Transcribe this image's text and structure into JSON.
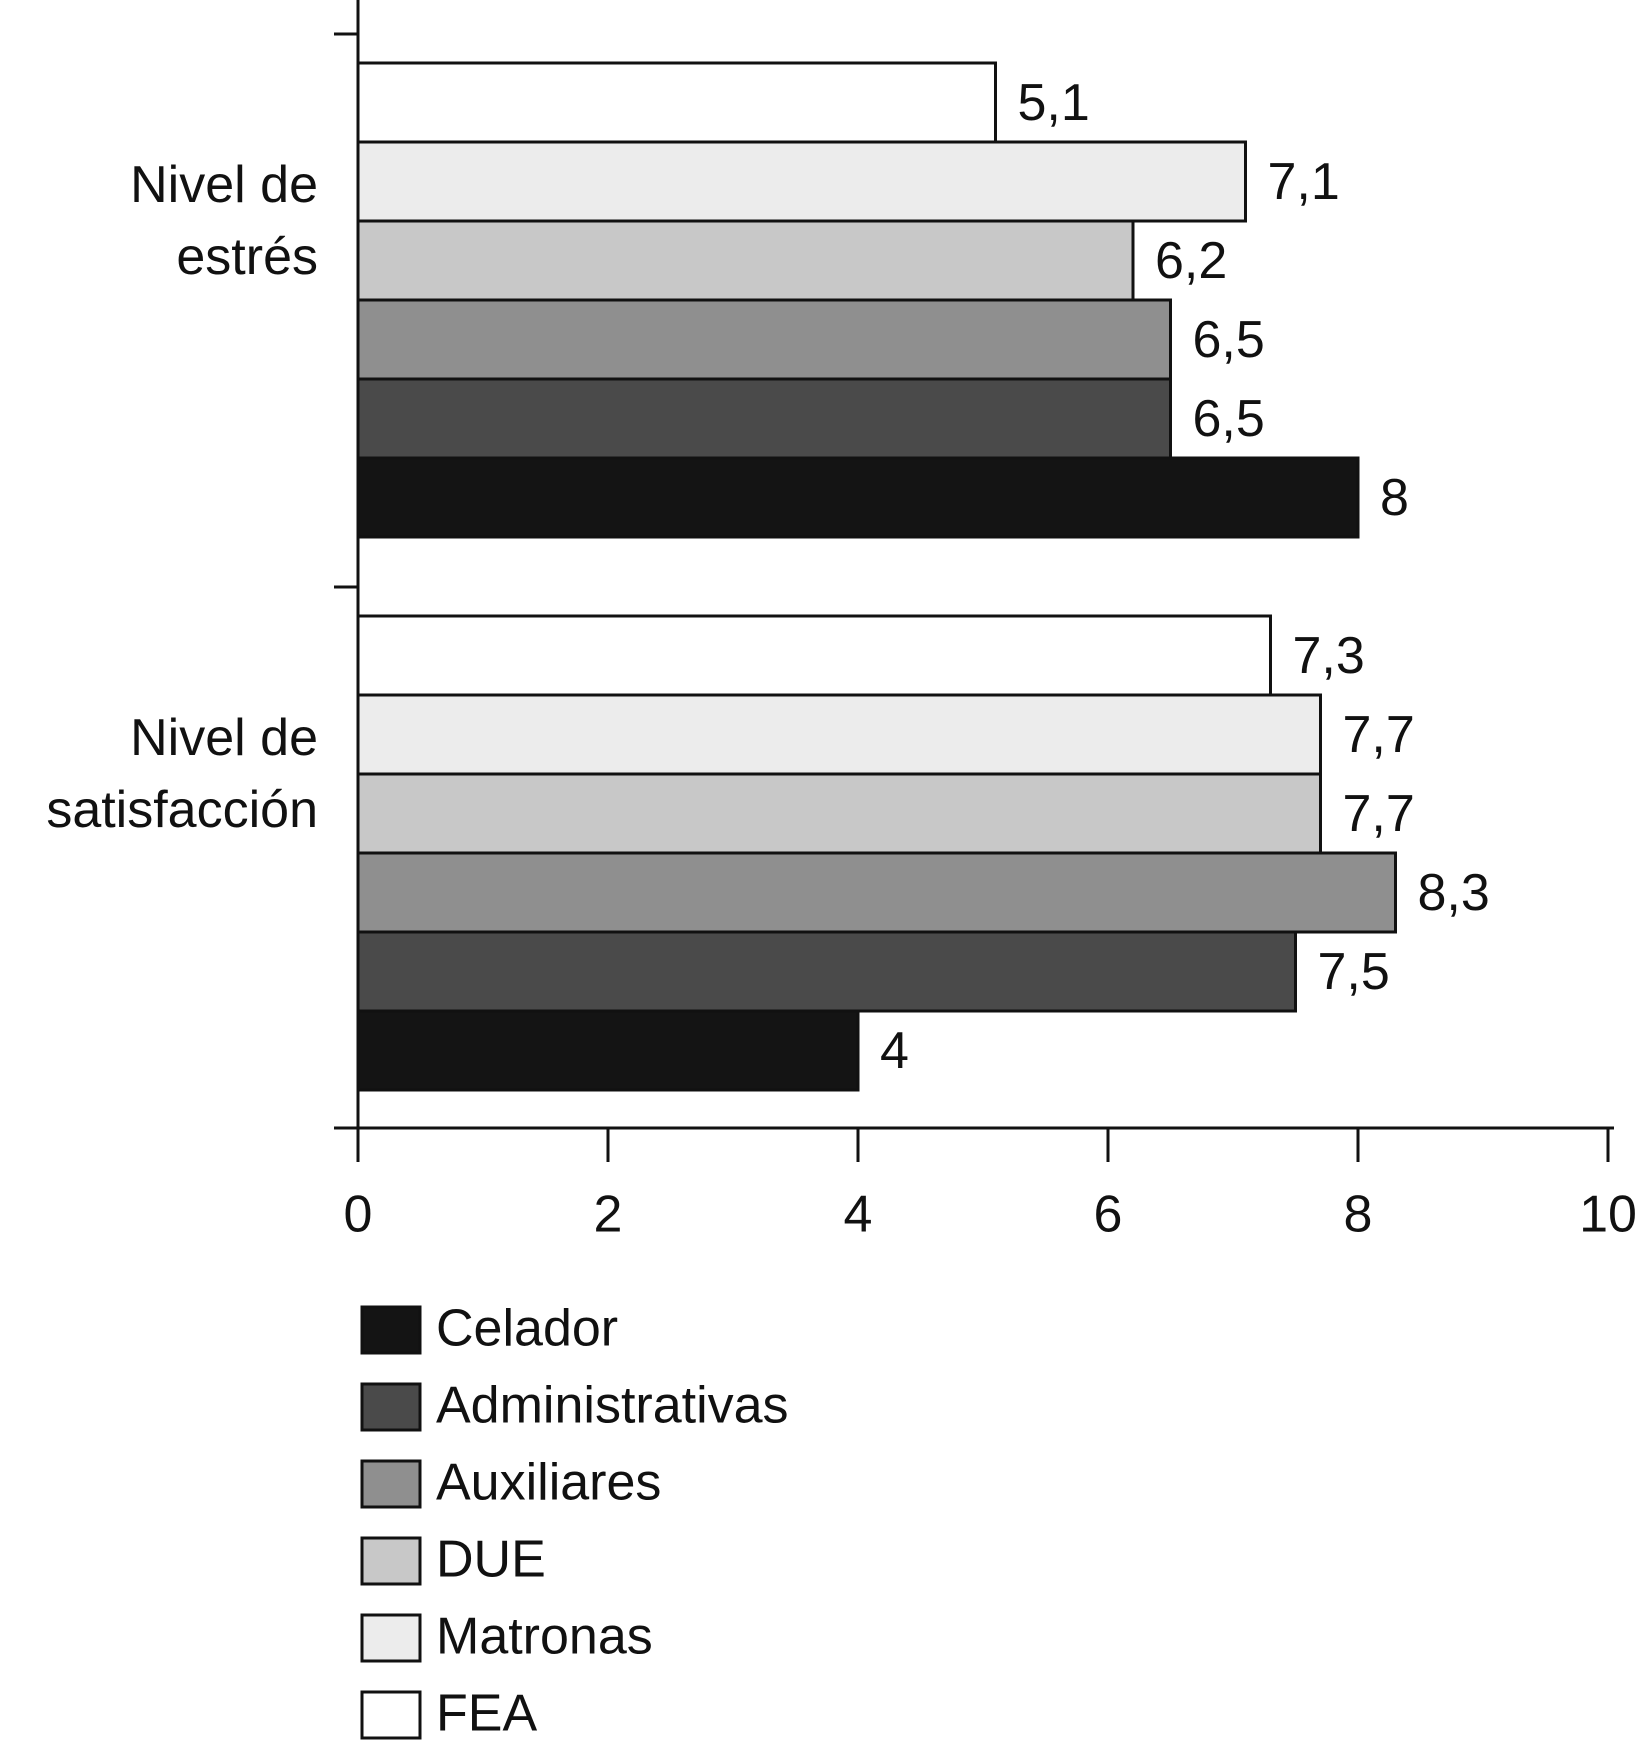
{
  "chart_data": {
    "type": "hbar",
    "categories": [
      "Nivel de estrés",
      "Nivel de satisfacción"
    ],
    "series": [
      {
        "name": "Celador",
        "color": "#141414",
        "values": [
          8,
          4
        ],
        "value_labels": [
          "8",
          "4"
        ]
      },
      {
        "name": "Administrativas",
        "color": "#4a4a4a",
        "values": [
          6.5,
          7.5
        ],
        "value_labels": [
          "6,5",
          "7,5"
        ]
      },
      {
        "name": "Auxiliares",
        "color": "#8f8f8f",
        "values": [
          6.5,
          8.3
        ],
        "value_labels": [
          "6,5",
          "8,3"
        ]
      },
      {
        "name": "DUE",
        "color": "#c8c8c8",
        "values": [
          6.2,
          7.7
        ],
        "value_labels": [
          "6,2",
          "7,7"
        ]
      },
      {
        "name": "Matronas",
        "color": "#ececec",
        "values": [
          7.1,
          7.7
        ],
        "value_labels": [
          "7,1",
          "7,7"
        ]
      },
      {
        "name": "FEA",
        "color": "#ffffff",
        "values": [
          5.1,
          7.3
        ],
        "value_labels": [
          "5,1",
          "7,3"
        ]
      }
    ],
    "xlim": [
      0,
      10
    ],
    "xticks": [
      0,
      2,
      4,
      6,
      8,
      10
    ],
    "legend": "bottom-left",
    "grid": false
  }
}
